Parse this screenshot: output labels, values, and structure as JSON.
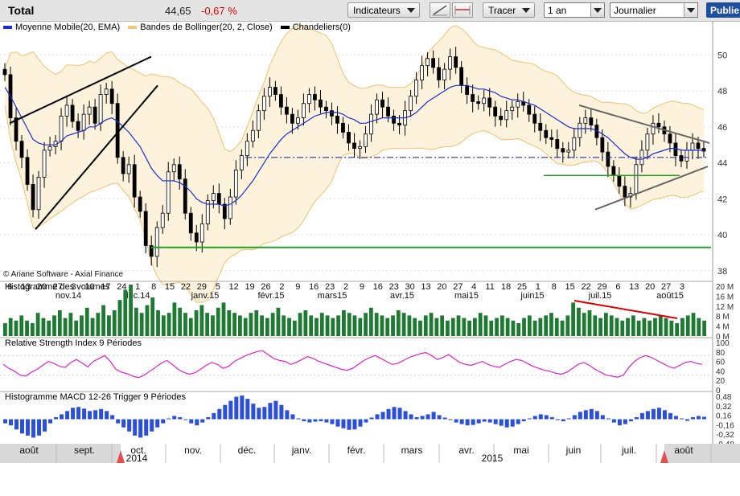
{
  "toolbar": {
    "title": "Total",
    "price": "44,65",
    "change": "-0,67 %",
    "indicators_label": "Indicateurs",
    "draw_label": "Tracer",
    "period_value": "1 an",
    "interval_value": "Journalier",
    "publish_label": "Publie"
  },
  "legend": {
    "ma": "Moyenne Mobile(20, EMA)",
    "bb": "Bandes de Bollinger(20, 2, Close)",
    "candles": "Chandeliers(0)",
    "ma_color": "#1a2ed0",
    "bb_color": "#f0c878",
    "candle_color": "#000000"
  },
  "copyright": "© Ariane Software - Axial Finance",
  "chart_data": [
    {
      "type": "candlestick",
      "series": [
        {
          "name": "Chandeliers(0)",
          "values": [
            48.9,
            46.5,
            45.2,
            44.3,
            42.8,
            41.4,
            43.2,
            44.7,
            44.9,
            45.2,
            46.6,
            47.2,
            46.3,
            45.8,
            46.7,
            47.1,
            46.2,
            47.8,
            48.1,
            47.3,
            44.3,
            43.4,
            43.9,
            42.1,
            41.3,
            39.4,
            38.8,
            40.4,
            41.2,
            43.5,
            43.9,
            43.1,
            41.2,
            40.1,
            39.6,
            40.6,
            41.9,
            42.3,
            41.7,
            40.9,
            42.1,
            43.6,
            44.4,
            45.2,
            45.8,
            46.9,
            47.7,
            48.2,
            47.8,
            47.1,
            46.7,
            46.2,
            46.5,
            47.3,
            47.8,
            47.5,
            47.1,
            46.9,
            46.6,
            46.2,
            45.7,
            45.1,
            44.8,
            44.9,
            45.6,
            46.7,
            47.5,
            47.1,
            46.6,
            46.2,
            46.1,
            46.9,
            47.7,
            48.6,
            49.4,
            49.8,
            49.3,
            48.6,
            49.2,
            49.9,
            49.3,
            48.3,
            47.8,
            47.4,
            47.3,
            47.6,
            47.1,
            46.6,
            46.4,
            46.9,
            47.1,
            47.4,
            47.2,
            46.7,
            46.2,
            45.8,
            45.4,
            45.3,
            44.8,
            44.6,
            44.7,
            45.4,
            46.2,
            46.5,
            46.1,
            45.4,
            44.6,
            43.8,
            43.3,
            42.7,
            42.1,
            42.3,
            43.9,
            44.7,
            45.6,
            46.2,
            46.0,
            45.6,
            45.1,
            44.4,
            44.1,
            44.7,
            45.1,
            44.8,
            44.65
          ]
        },
        {
          "name": "Moyenne Mobile(20, EMA)",
          "values": [
            48.2,
            47.7,
            47.1,
            46.5,
            45.9,
            45.3,
            45.1,
            45.0,
            45.0,
            45.0,
            45.2,
            45.5,
            45.6,
            45.7,
            45.8,
            46.0,
            46.0,
            46.2,
            46.4,
            46.5,
            46.3,
            46.0,
            45.7,
            45.3,
            44.9,
            44.3,
            43.7,
            43.3,
            43.0,
            43.0,
            43.0,
            42.9,
            42.7,
            42.4,
            42.0,
            41.8,
            41.7,
            41.7,
            41.7,
            41.6,
            41.7,
            41.9,
            42.2,
            42.6,
            43.0,
            43.5,
            44.0,
            44.5,
            44.9,
            45.3,
            45.6,
            45.8,
            46.0,
            46.2,
            46.4,
            46.6,
            46.7,
            46.8,
            46.8,
            46.8,
            46.7,
            46.5,
            46.4,
            46.2,
            46.2,
            46.3,
            46.4,
            46.5,
            46.5,
            46.5,
            46.5,
            46.5,
            46.6,
            46.8,
            47.1,
            47.4,
            47.6,
            47.8,
            48.0,
            48.2,
            48.3,
            48.3,
            48.3,
            48.2,
            48.1,
            48.1,
            48.0,
            47.9,
            47.7,
            47.6,
            47.5,
            47.5,
            47.4,
            47.3,
            47.2,
            47.0,
            46.8,
            46.6,
            46.4,
            46.2,
            46.0,
            45.9,
            45.9,
            45.9,
            45.9,
            45.8,
            45.6,
            45.4,
            45.1,
            44.8,
            44.5,
            44.3,
            44.2,
            44.2,
            44.3,
            44.5,
            44.6,
            44.7,
            44.8,
            44.8,
            44.7,
            44.7,
            44.7,
            44.7,
            44.7
          ]
        }
      ],
      "ylim": [
        37.5,
        51.8
      ],
      "yticks": [
        "38",
        "40",
        "42",
        "44",
        "46",
        "48",
        "50"
      ],
      "x_day_labels": [
        "6",
        "13",
        "20",
        "27",
        "3",
        "10",
        "17",
        "24",
        "1",
        "8",
        "15",
        "22",
        "29",
        "5",
        "12",
        "19",
        "26",
        "2",
        "9",
        "16",
        "23",
        "2",
        "9",
        "16",
        "23",
        "30",
        "13",
        "20",
        "27",
        "4",
        "11",
        "18",
        "25",
        "1",
        "8",
        "15",
        "22",
        "29",
        "6",
        "13",
        "20",
        "27",
        "3"
      ],
      "x_month_labels": [
        "nov.14",
        "déc.14",
        "janv.15",
        "févr.15",
        "mars15",
        "avr.15",
        "mai15",
        "juin15",
        "juil.15",
        "août15"
      ],
      "copyright": "© Ariane Software - Axial Finance"
    },
    {
      "type": "bar",
      "title": "Histogramme des volumes",
      "yticks": [
        "20 M",
        "16 M",
        "12 M",
        "8 M",
        "4 M",
        "0 M"
      ],
      "ylim": [
        0,
        20
      ],
      "values": [
        5,
        7,
        6,
        8,
        6,
        5,
        9,
        7,
        6,
        8,
        10,
        7,
        9,
        6,
        8,
        11,
        7,
        9,
        12,
        8,
        10,
        14,
        18,
        20,
        11,
        9,
        12,
        15,
        10,
        8,
        9,
        13,
        11,
        9,
        7,
        10,
        12,
        9,
        8,
        11,
        13,
        10,
        9,
        8,
        7,
        9,
        10,
        8,
        7,
        9,
        11,
        8,
        7,
        6,
        9,
        10,
        8,
        7,
        9,
        8,
        7,
        8,
        10,
        9,
        8,
        7,
        9,
        11,
        9,
        8,
        7,
        8,
        10,
        9,
        8,
        7,
        6,
        8,
        9,
        7,
        8,
        6,
        7,
        8,
        7,
        6,
        7,
        9,
        8,
        6,
        7,
        8,
        7,
        6,
        5,
        7,
        8,
        6,
        7,
        8,
        9,
        7,
        6,
        8,
        13,
        11,
        9,
        10,
        8,
        7,
        9,
        8,
        7,
        6,
        7,
        8,
        6,
        7,
        6,
        7,
        8,
        7,
        6,
        5,
        7,
        8,
        9,
        7,
        6
      ]
    },
    {
      "type": "line",
      "title": "Relative Strength Index 9 Périodes",
      "yticks": [
        "100",
        "80",
        "60",
        "40",
        "20",
        "0"
      ],
      "ylim": [
        0,
        100
      ],
      "values": [
        52,
        44,
        38,
        30,
        28,
        36,
        42,
        50,
        58,
        54,
        48,
        46,
        56,
        62,
        55,
        47,
        58,
        64,
        70,
        58,
        42,
        36,
        33,
        28,
        25,
        30,
        38,
        46,
        54,
        60,
        52,
        42,
        36,
        32,
        35,
        42,
        50,
        56,
        52,
        44,
        48,
        58,
        64,
        70,
        74,
        78,
        80,
        72,
        64,
        60,
        58,
        52,
        56,
        62,
        68,
        64,
        58,
        54,
        50,
        46,
        42,
        40,
        44,
        52,
        60,
        66,
        70,
        64,
        58,
        52,
        54,
        60,
        66,
        70,
        74,
        76,
        70,
        62,
        66,
        72,
        64,
        56,
        52,
        50,
        54,
        58,
        52,
        48,
        46,
        52,
        58,
        62,
        60,
        54,
        48,
        44,
        40,
        38,
        34,
        32,
        36,
        44,
        52,
        56,
        50,
        42,
        36,
        30,
        28,
        26,
        30,
        46,
        58,
        66,
        70,
        66,
        60,
        54,
        48,
        44,
        50,
        56,
        58,
        54,
        52
      ]
    },
    {
      "type": "bar",
      "title": "Histogramme MACD 12-26   Trigger 9 Périodes",
      "yticks": [
        "0,48",
        "0,32",
        "0,16",
        "-0,16",
        "-0,32",
        "-0,48"
      ],
      "ylim": [
        -0.6,
        0.6
      ],
      "values": [
        -0.1,
        -0.15,
        -0.25,
        -0.35,
        -0.4,
        -0.45,
        -0.4,
        -0.3,
        -0.1,
        0.05,
        0.12,
        0.2,
        0.28,
        0.3,
        0.26,
        0.2,
        0.22,
        0.25,
        0.2,
        0.1,
        -0.1,
        -0.2,
        -0.3,
        -0.4,
        -0.45,
        -0.4,
        -0.3,
        -0.2,
        -0.1,
        0.02,
        0.08,
        0.05,
        -0.02,
        -0.1,
        -0.15,
        -0.08,
        0.05,
        0.15,
        0.25,
        0.35,
        0.45,
        0.55,
        0.58,
        0.5,
        0.38,
        0.28,
        0.3,
        0.4,
        0.45,
        0.35,
        0.22,
        0.12,
        0.02,
        -0.05,
        -0.08,
        -0.06,
        -0.05,
        -0.08,
        -0.12,
        -0.18,
        -0.22,
        -0.26,
        -0.25,
        -0.18,
        -0.08,
        0.04,
        0.12,
        0.18,
        0.25,
        0.3,
        0.28,
        0.2,
        0.12,
        0.05,
        0.08,
        0.12,
        0.18,
        0.1,
        0.04,
        -0.02,
        -0.08,
        -0.12,
        -0.15,
        -0.14,
        -0.1,
        -0.06,
        -0.08,
        -0.12,
        -0.16,
        -0.2,
        -0.18,
        -0.12,
        -0.05,
        0.02,
        0.08,
        0.12,
        0.1,
        0.05,
        -0.02,
        -0.05,
        0.02,
        0.1,
        0.18,
        0.22,
        0.25,
        0.2,
        0.1,
        0.02,
        -0.08,
        -0.15,
        -0.12,
        -0.05,
        0.05,
        0.15,
        0.2,
        0.25,
        0.28,
        0.22,
        0.15,
        0.08,
        0.02,
        -0.04,
        0.05,
        0.08,
        0.06
      ]
    }
  ],
  "navigator": {
    "months": [
      "août",
      "sept.",
      "oct.",
      "nov.",
      "déc.",
      "janv.",
      "févr.",
      "mars",
      "avr.",
      "mai",
      "juin",
      "juil.",
      "août"
    ],
    "years": [
      "2014",
      "2015"
    ]
  }
}
